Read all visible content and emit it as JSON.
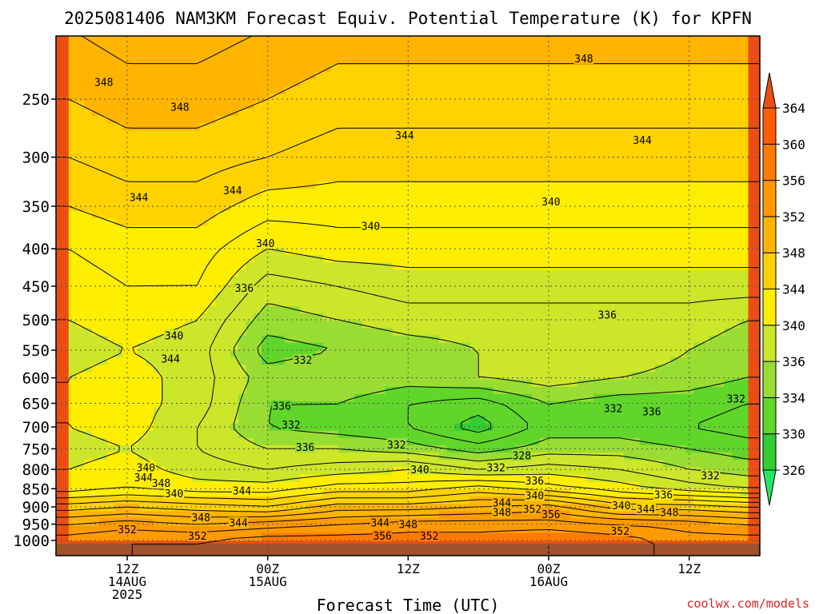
{
  "chart_data": {
    "type": "heatmap",
    "title": "2025081406 NAM3KM Forecast Equiv. Potential Temperature (K) for KPFN",
    "xlabel": "Forecast Time (UTC)",
    "ylabel": "",
    "credit": "coolwx.com/models",
    "y_scale": "log-pressure",
    "ylim": [
      1000,
      200
    ],
    "xlim": [
      7,
      65
    ],
    "grid": true,
    "y_ticks": [
      250,
      300,
      350,
      400,
      450,
      500,
      550,
      600,
      650,
      700,
      750,
      800,
      850,
      900,
      950,
      1000
    ],
    "x_ticks": [
      {
        "hour": 12,
        "lines": [
          "12Z",
          "14AUG",
          "2025"
        ]
      },
      {
        "hour": 24,
        "lines": [
          "00Z",
          "15AUG"
        ]
      },
      {
        "hour": 36,
        "lines": [
          "12Z"
        ]
      },
      {
        "hour": 48,
        "lines": [
          "00Z",
          "16AUG"
        ]
      },
      {
        "hour": 60,
        "lines": [
          "12Z"
        ]
      }
    ],
    "colorbar": {
      "levels": [
        326,
        330,
        334,
        336,
        340,
        344,
        348,
        352,
        356,
        360,
        364
      ],
      "colors": [
        "#23e862",
        "#33cc33",
        "#61d62a",
        "#99dd33",
        "#cce62a",
        "#ffee00",
        "#ffd200",
        "#ffb400",
        "#ff9a00",
        "#ff7b00",
        "#ff5c00",
        "#ea4e14"
      ]
    },
    "surface_color": "#a0522d",
    "profile_levels": [
      1000,
      950,
      900,
      850,
      800,
      750,
      700,
      650,
      600,
      550,
      500,
      450,
      400,
      350,
      300,
      250,
      200
    ],
    "profiles": {
      "hours": [
        7,
        12,
        18,
        24,
        30,
        36,
        42,
        48,
        54,
        60,
        65
      ],
      "values": [
        [
          355,
          352,
          347,
          341,
          340,
          339,
          340,
          340,
          340,
          339,
          340,
          341,
          342,
          344,
          346,
          348,
          350
        ],
        [
          356,
          353,
          348,
          342,
          341,
          340,
          341,
          341,
          341,
          340,
          341,
          342,
          343,
          345,
          347,
          349,
          351
        ],
        [
          356,
          352,
          347,
          341,
          339,
          338,
          338,
          339,
          339,
          339,
          340,
          342,
          343,
          345,
          347,
          349,
          351
        ],
        [
          357,
          353,
          346,
          341,
          338,
          336,
          334,
          334,
          335,
          333,
          335,
          337,
          340,
          343,
          346,
          348,
          350
        ],
        [
          357,
          354,
          349,
          343,
          339,
          336,
          333,
          334,
          336,
          334,
          336,
          338,
          341,
          343,
          345,
          347,
          349
        ],
        [
          357,
          355,
          349,
          343,
          340,
          335,
          332,
          332,
          335,
          335,
          337,
          339,
          341,
          343,
          345,
          347,
          349
        ],
        [
          357,
          355,
          350,
          345,
          338,
          333,
          329,
          331,
          336,
          336,
          337,
          339,
          341,
          343,
          345,
          347,
          349
        ],
        [
          358,
          355,
          351,
          343,
          339,
          335,
          333,
          334,
          337,
          337,
          337,
          339,
          341,
          343,
          345,
          347,
          349
        ],
        [
          357,
          354,
          347,
          341,
          338,
          335,
          333,
          333,
          336,
          338,
          337,
          339,
          341,
          343,
          345,
          347,
          349
        ],
        [
          355,
          353,
          347,
          339,
          336,
          334,
          332,
          333,
          335,
          336,
          337,
          339,
          341,
          343,
          345,
          347,
          349
        ],
        [
          355,
          352,
          346,
          338,
          335,
          333,
          331,
          332,
          334,
          335,
          336,
          339,
          341,
          343,
          345,
          347,
          349
        ]
      ]
    },
    "contour_labels": [
      {
        "text": "348",
        "hour": 10.0,
        "p": 237
      },
      {
        "text": "348",
        "hour": 16.5,
        "p": 256
      },
      {
        "text": "348",
        "hour": 51.0,
        "p": 220
      },
      {
        "text": "344",
        "hour": 35.7,
        "p": 280
      },
      {
        "text": "344",
        "hour": 56.0,
        "p": 284
      },
      {
        "text": "344",
        "hour": 13.0,
        "p": 340
      },
      {
        "text": "344",
        "hour": 21.0,
        "p": 333
      },
      {
        "text": "340",
        "hour": 23.8,
        "p": 393
      },
      {
        "text": "340",
        "hour": 32.8,
        "p": 372
      },
      {
        "text": "340",
        "hour": 48.2,
        "p": 345
      },
      {
        "text": "336",
        "hour": 22.0,
        "p": 452
      },
      {
        "text": "336",
        "hour": 53.0,
        "p": 492
      },
      {
        "text": "340",
        "hour": 16.0,
        "p": 525
      },
      {
        "text": "344",
        "hour": 15.7,
        "p": 565
      },
      {
        "text": "332",
        "hour": 27.0,
        "p": 567
      },
      {
        "text": "336",
        "hour": 25.2,
        "p": 655
      },
      {
        "text": "332",
        "hour": 26.0,
        "p": 695
      },
      {
        "text": "336",
        "hour": 27.2,
        "p": 745
      },
      {
        "text": "332",
        "hour": 35.0,
        "p": 740
      },
      {
        "text": "332",
        "hour": 53.5,
        "p": 660
      },
      {
        "text": "336",
        "hour": 56.8,
        "p": 667
      },
      {
        "text": "332",
        "hour": 64.0,
        "p": 640
      },
      {
        "text": "328",
        "hour": 45.7,
        "p": 765
      },
      {
        "text": "332",
        "hour": 43.5,
        "p": 795
      },
      {
        "text": "340",
        "hour": 13.6,
        "p": 795
      },
      {
        "text": "344",
        "hour": 13.4,
        "p": 820
      },
      {
        "text": "348",
        "hour": 14.9,
        "p": 835
      },
      {
        "text": "340",
        "hour": 16.0,
        "p": 862
      },
      {
        "text": "344",
        "hour": 21.8,
        "p": 855
      },
      {
        "text": "340",
        "hour": 37.0,
        "p": 800
      },
      {
        "text": "336",
        "hour": 46.8,
        "p": 828
      },
      {
        "text": "340",
        "hour": 46.8,
        "p": 868
      },
      {
        "text": "344",
        "hour": 44.0,
        "p": 888
      },
      {
        "text": "348",
        "hour": 44.0,
        "p": 915
      },
      {
        "text": "352",
        "hour": 46.6,
        "p": 905
      },
      {
        "text": "356",
        "hour": 48.2,
        "p": 920
      },
      {
        "text": "336",
        "hour": 57.8,
        "p": 866
      },
      {
        "text": "340",
        "hour": 54.2,
        "p": 895
      },
      {
        "text": "344",
        "hour": 56.3,
        "p": 905
      },
      {
        "text": "348",
        "hour": 58.3,
        "p": 915
      },
      {
        "text": "332",
        "hour": 61.8,
        "p": 815
      },
      {
        "text": "348",
        "hour": 18.3,
        "p": 930
      },
      {
        "text": "344",
        "hour": 21.5,
        "p": 945
      },
      {
        "text": "352",
        "hour": 18.0,
        "p": 985
      },
      {
        "text": "352",
        "hour": 12.0,
        "p": 965
      },
      {
        "text": "344",
        "hour": 33.6,
        "p": 945
      },
      {
        "text": "348",
        "hour": 36.0,
        "p": 950
      },
      {
        "text": "356",
        "hour": 33.8,
        "p": 985
      },
      {
        "text": "352",
        "hour": 37.8,
        "p": 985
      },
      {
        "text": "352",
        "hour": 54.1,
        "p": 970
      }
    ]
  }
}
